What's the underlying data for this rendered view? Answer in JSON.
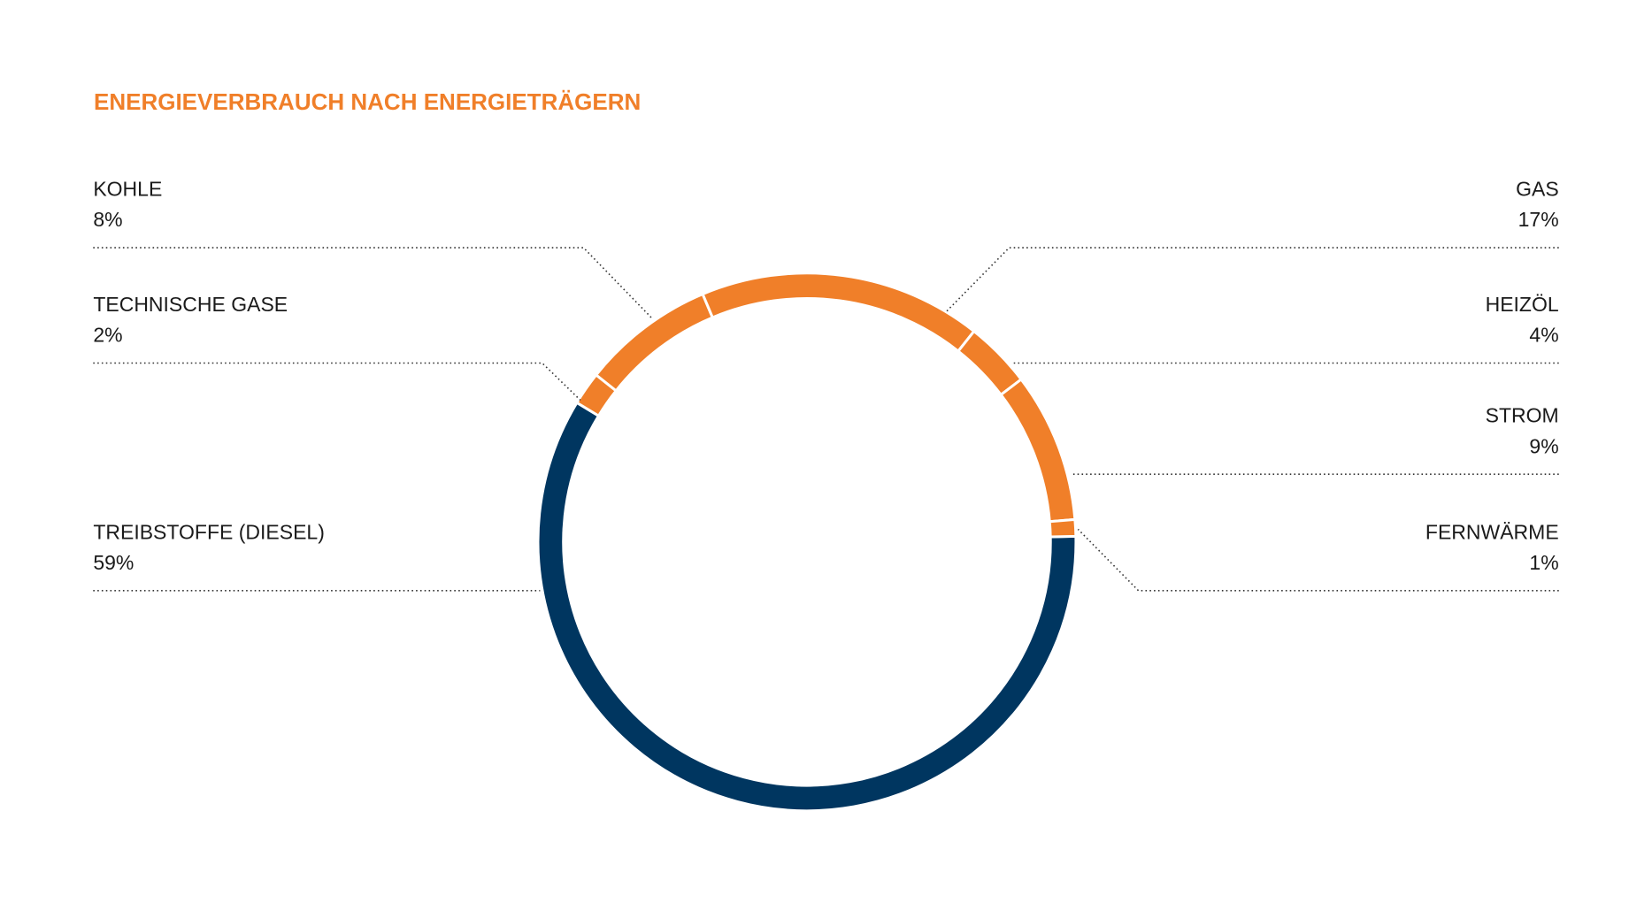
{
  "chart_data": {
    "type": "donut",
    "title": "ENERGIEVERBRAUCH NACH ENERGIETRÄGERN",
    "title_color": "#f07f29",
    "categories": [
      "TREIBSTOFFE (DIESEL)",
      "TECHNISCHE GASE",
      "KOHLE",
      "GAS",
      "HEIZÖL",
      "STROM",
      "FERNWÄRME"
    ],
    "values": [
      59,
      2,
      8,
      17,
      4,
      9,
      1
    ],
    "value_labels": [
      "59%",
      "2%",
      "8%",
      "17%",
      "4%",
      "9%",
      "1%"
    ],
    "colors": [
      "#003660",
      "#f07f29",
      "#f07f29",
      "#f07f29",
      "#f07f29",
      "#f07f29",
      "#f07f29"
    ]
  }
}
